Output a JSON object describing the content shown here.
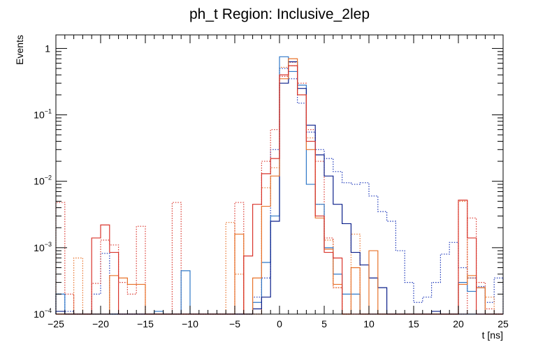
{
  "chart_data": {
    "type": "histogram",
    "title": "ph_t Region: Inclusive_2lep",
    "xlabel": "t [ns]",
    "ylabel": "Events",
    "xlim": [
      -25,
      25
    ],
    "ylim": [
      0.0001,
      1.6
    ],
    "yscale": "log",
    "grid": false,
    "legend": "none",
    "bin_width": 1,
    "x_ticks": [
      {
        "value": -25,
        "label": "−25"
      },
      {
        "value": -20,
        "label": "−20"
      },
      {
        "value": -15,
        "label": "−15"
      },
      {
        "value": -10,
        "label": "−10"
      },
      {
        "value": -5,
        "label": "−5"
      },
      {
        "value": 0,
        "label": "0"
      },
      {
        "value": 5,
        "label": "5"
      },
      {
        "value": 10,
        "label": "10"
      },
      {
        "value": 15,
        "label": "15"
      },
      {
        "value": 20,
        "label": "20"
      },
      {
        "value": 25,
        "label": "25"
      }
    ],
    "y_ticks": [
      {
        "value": 0.0001,
        "base": "10",
        "exp": "−4"
      },
      {
        "value": 0.001,
        "base": "10",
        "exp": "−3"
      },
      {
        "value": 0.01,
        "base": "10",
        "exp": "−2"
      },
      {
        "value": 0.1,
        "base": "10",
        "exp": "−1"
      },
      {
        "value": 1,
        "base": "1",
        "exp": ""
      }
    ],
    "series": [
      {
        "name": "dotted-blue",
        "color": "#1a35b8",
        "style": "dotted",
        "bins": {
          "-25": 0.0002,
          "-24": 0.00011,
          "-23": 0.0001,
          "-22": 0.0001,
          "-21": 0.0002,
          "-20": 0.00082,
          "-3": 0.00018,
          "-2": 0.00035,
          "-1": 0.03,
          "0": 0.5,
          "1": 0.35,
          "2": 0.15,
          "3": 0.055,
          "4": 0.03,
          "5": 0.022,
          "6": 0.014,
          "7": 0.0095,
          "8": 0.009,
          "9": 0.0095,
          "10": 0.006,
          "11": 0.0035,
          "12": 0.0025,
          "13": 0.0009,
          "14": 0.0003,
          "15": 0.00015,
          "16": 0.00018,
          "17": 0.0003,
          "18": 0.0008,
          "19": 0.0012,
          "20": 0.0005,
          "21": 0.00035,
          "22": 0.00026,
          "23": 0.00015,
          "24": 0.00035
        }
      },
      {
        "name": "dotted-red",
        "color": "#d9342b",
        "style": "dotted",
        "bins": {
          "-25": 0.0048,
          "-24": 0.0002,
          "-23": 0.0001,
          "-22": 0.0001,
          "-21": 0.00029,
          "-20": 0.0013,
          "-19": 0.0011,
          "-18": 0.0003,
          "-17": 0.0002,
          "-16": 0.0021,
          "-15": 0.0001,
          "-13": 0.0001,
          "-12": 0.0048,
          "-11": 0.0001,
          "-5": 0.0048,
          "-4": 0.0001,
          "-3": 0.0001,
          "-2": 0.02,
          "-1": 0.06,
          "0": 0.38,
          "1": 0.62,
          "2": 0.3,
          "3": 0.06,
          "4": 0.02,
          "5": 0.0014,
          "6": 0.00025,
          "7": 0.0001,
          "8": 0.0001,
          "21": 0.0028,
          "22": 0.0003,
          "23": 0.00012
        }
      },
      {
        "name": "dotted-orange",
        "color": "#e8722a",
        "style": "dotted",
        "bins": {
          "-25": 0.0001,
          "-24": 0.0001,
          "-23": 0.0007,
          "-22": 0.0001,
          "-6": 0.0024,
          "-5": 0.0004,
          "-4": 0.0001,
          "-3": 0.0001,
          "-2": 0.008,
          "-1": 0.016,
          "0": 0.52,
          "1": 0.55,
          "2": 0.2,
          "3": 0.045,
          "4": 0.0045,
          "5": 0.0013,
          "6": 0.00025,
          "7": 0.0001,
          "8": 0.0016,
          "9": 0.0001,
          "20": 0.005,
          "21": 0.00035,
          "22": 0.00025,
          "23": 0.00018
        }
      },
      {
        "name": "solid-lightblue",
        "color": "#2f78c8",
        "style": "solid",
        "bins": {
          "-25": 0.0002,
          "-24": 0.0001,
          "-23": 0.0001,
          "-22": 0.0001,
          "-21": 0.0001,
          "-20": 0.0001,
          "-19": 0.0001,
          "-18": 0.0001,
          "-17": 0.0001,
          "-16": 0.0001,
          "-15": 0.0001,
          "-14": 0.00011,
          "-13": 0.0001,
          "-12": 0.0001,
          "-11": 0.00045,
          "-10": 0.0001,
          "-9": 0.0001,
          "-8": 0.0001,
          "-7": 0.0001,
          "-6": 0.0001,
          "-5": 0.0001,
          "-4": 0.0001,
          "-3": 0.00015,
          "-2": 0.0006,
          "-1": 0.003,
          "0": 0.75,
          "1": 0.45,
          "2": 0.28,
          "3": 0.009,
          "4": 0.0045,
          "5": 0.001,
          "6": 0.0004,
          "7": 0.0002,
          "8": 0.0002,
          "9": 0.0001,
          "20": 0.0003,
          "21": 0.00022,
          "22": 0.00025
        }
      },
      {
        "name": "solid-navy",
        "color": "#0a1f8a",
        "style": "solid",
        "bins": {
          "-25": 0.00011,
          "-24": 0.0001,
          "-23": 0.0001,
          "-22": 0.0001,
          "-21": 0.0001,
          "-20": 0.0001,
          "-19": 0.0001,
          "-18": 0.0001,
          "-17": 0.0001,
          "-16": 0.0001,
          "-15": 0.0001,
          "-14": 0.0001,
          "-13": 0.0001,
          "-12": 0.0001,
          "-11": 0.0001,
          "-10": 0.0001,
          "-9": 0.0001,
          "-8": 0.0001,
          "-7": 0.0001,
          "-6": 0.0001,
          "-5": 0.0001,
          "-4": 0.0001,
          "-3": 0.00012,
          "-2": 0.00018,
          "-1": 0.0025,
          "0": 0.3,
          "1": 0.63,
          "2": 0.25,
          "3": 0.07,
          "4": 0.025,
          "5": 0.012,
          "6": 0.0045,
          "7": 0.0023,
          "8": 0.00085,
          "9": 0.00055,
          "10": 0.00035,
          "11": 0.00025,
          "12": 0.0001,
          "17": 0.00011
        }
      },
      {
        "name": "solid-orange",
        "color": "#e8722a",
        "style": "solid",
        "bins": {
          "-25": 0.0001,
          "-24": 0.0001,
          "-23": 0.0001,
          "-22": 0.0001,
          "-21": 0.0001,
          "-20": 0.0001,
          "-19": 0.00038,
          "-18": 0.00035,
          "-17": 0.00028,
          "-16": 0.00028,
          "-15": 0.0001,
          "-14": 0.0001,
          "-13": 0.0001,
          "-12": 0.0001,
          "-11": 0.0001,
          "-10": 0.0001,
          "-9": 0.0001,
          "-8": 0.0001,
          "-7": 0.0001,
          "-6": 0.0001,
          "-5": 0.0016,
          "-4": 0.0001,
          "-3": 0.00035,
          "-2": 0.0042,
          "-1": 0.012,
          "0": 0.35,
          "1": 0.7,
          "2": 0.2,
          "3": 0.03,
          "4": 0.0028,
          "5": 0.00095,
          "6": 0.00028,
          "7": 0.0001,
          "8": 0.0005,
          "9": 0.0001,
          "10": 0.0009,
          "11": 0.0001,
          "20": 0.00028,
          "21": 0.00038,
          "22": 0.00025
        }
      },
      {
        "name": "solid-red",
        "color": "#d9342b",
        "style": "solid",
        "bins": {
          "-25": 0.0001,
          "-24": 0.0001,
          "-23": 0.0001,
          "-22": 0.0001,
          "-21": 0.0014,
          "-20": 0.0022,
          "-19": 0.00085,
          "-18": 0.0001,
          "-17": 0.0001,
          "-16": 0.0001,
          "-15": 0.0001,
          "-14": 0.0001,
          "-13": 0.0001,
          "-12": 0.0001,
          "-11": 0.0001,
          "-10": 0.0001,
          "-9": 0.0001,
          "-8": 0.0001,
          "-7": 0.0001,
          "-6": 0.0001,
          "-5": 0.0001,
          "-4": 0.00075,
          "-3": 0.0045,
          "-2": 0.013,
          "-1": 0.022,
          "0": 0.4,
          "1": 0.55,
          "2": 0.2,
          "3": 0.04,
          "4": 0.003,
          "5": 0.00085,
          "6": 0.0007,
          "7": 0.0001,
          "20": 0.0052,
          "21": 0.0014,
          "22": 0.0001
        }
      }
    ]
  }
}
